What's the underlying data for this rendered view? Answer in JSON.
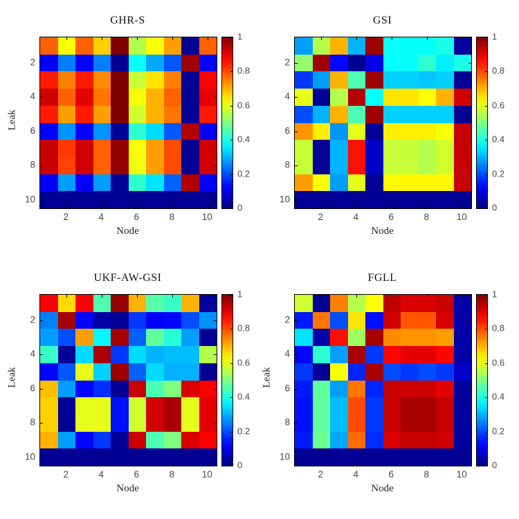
{
  "figure": {
    "background": "#ffffff",
    "colormap": "jet",
    "tick_label_color": "#474747",
    "title_color": "#111111"
  },
  "chart_data": [
    {
      "type": "heatmap",
      "title": "GHR-S",
      "xlabel": "Node",
      "ylabel": "Leak",
      "x_ticks": [
        2,
        4,
        6,
        8,
        10
      ],
      "y_ticks": [
        2,
        4,
        6,
        8,
        10
      ],
      "colorbar_ticks": [
        0,
        0.2,
        0.4,
        0.6,
        0.8,
        1
      ],
      "zlim": [
        0,
        1
      ],
      "x_range": [
        1,
        10
      ],
      "y_range": [
        1,
        10
      ],
      "values": [
        [
          0.78,
          0.62,
          0.78,
          0.67,
          1.0,
          0.55,
          0.62,
          0.72,
          0.02,
          0.78
        ],
        [
          0.12,
          0.25,
          0.12,
          0.25,
          0.02,
          0.38,
          0.29,
          0.21,
          0.97,
          0.12
        ],
        [
          0.85,
          0.75,
          0.85,
          0.74,
          1.0,
          0.57,
          0.65,
          0.75,
          0.02,
          0.87
        ],
        [
          0.92,
          0.78,
          0.9,
          0.76,
          1.0,
          0.62,
          0.7,
          0.78,
          0.02,
          0.9
        ],
        [
          0.85,
          0.72,
          0.85,
          0.72,
          1.0,
          0.58,
          0.7,
          0.76,
          0.02,
          0.85
        ],
        [
          0.12,
          0.27,
          0.12,
          0.27,
          0.02,
          0.42,
          0.34,
          0.21,
          0.95,
          0.12
        ],
        [
          0.93,
          0.82,
          0.92,
          0.78,
          0.98,
          0.62,
          0.72,
          0.8,
          0.02,
          0.92
        ],
        [
          0.93,
          0.81,
          0.92,
          0.78,
          0.98,
          0.61,
          0.72,
          0.8,
          0.02,
          0.92
        ],
        [
          0.12,
          0.28,
          0.12,
          0.28,
          0.02,
          0.42,
          0.35,
          0.22,
          0.95,
          0.12
        ],
        [
          0.02,
          0.02,
          0.02,
          0.02,
          0.02,
          0.02,
          0.02,
          0.02,
          0.02,
          0.02
        ]
      ]
    },
    {
      "type": "heatmap",
      "title": "GSI",
      "xlabel": "Node",
      "ylabel": "",
      "x_ticks": [
        2,
        4,
        6,
        8,
        10
      ],
      "y_ticks": [
        2,
        4,
        6,
        8,
        10
      ],
      "colorbar_ticks": [
        0,
        0.2,
        0.4,
        0.6,
        0.8,
        1
      ],
      "zlim": [
        0,
        1
      ],
      "x_range": [
        1,
        10
      ],
      "y_range": [
        1,
        10
      ],
      "values": [
        [
          0.28,
          0.55,
          0.7,
          0.3,
          0.97,
          0.38,
          0.38,
          0.38,
          0.4,
          0.03
        ],
        [
          0.52,
          0.97,
          0.13,
          0.02,
          0.1,
          0.38,
          0.38,
          0.42,
          0.36,
          0.4
        ],
        [
          0.18,
          0.28,
          0.7,
          0.45,
          0.97,
          0.33,
          0.33,
          0.32,
          0.33,
          0.02
        ],
        [
          0.6,
          0.02,
          0.55,
          0.95,
          0.38,
          0.65,
          0.65,
          0.62,
          0.7,
          0.92
        ],
        [
          0.2,
          0.3,
          0.7,
          0.45,
          0.97,
          0.33,
          0.33,
          0.33,
          0.33,
          0.02
        ],
        [
          0.73,
          0.64,
          0.27,
          0.6,
          0.02,
          0.64,
          0.64,
          0.64,
          0.62,
          0.93
        ],
        [
          0.57,
          0.02,
          0.3,
          0.86,
          0.07,
          0.57,
          0.57,
          0.55,
          0.58,
          0.93
        ],
        [
          0.57,
          0.02,
          0.3,
          0.86,
          0.07,
          0.57,
          0.57,
          0.55,
          0.58,
          0.93
        ],
        [
          0.72,
          0.62,
          0.28,
          0.6,
          0.02,
          0.63,
          0.63,
          0.63,
          0.63,
          0.93
        ],
        [
          0.02,
          0.02,
          0.02,
          0.02,
          0.02,
          0.02,
          0.02,
          0.02,
          0.02,
          0.02
        ]
      ]
    },
    {
      "type": "heatmap",
      "title": "UKF-AW-GSI",
      "xlabel": "Node",
      "ylabel": "Leak",
      "x_ticks": [
        2,
        4,
        6,
        8,
        10
      ],
      "y_ticks": [
        2,
        4,
        6,
        8,
        10
      ],
      "colorbar_ticks": [
        0,
        0.2,
        0.4,
        0.6,
        0.8,
        1
      ],
      "zlim": [
        0,
        1
      ],
      "x_range": [
        1,
        10
      ],
      "y_range": [
        1,
        10
      ],
      "values": [
        [
          0.88,
          0.66,
          0.88,
          0.45,
          0.98,
          0.7,
          0.46,
          0.43,
          0.7,
          0.03
        ],
        [
          0.25,
          0.96,
          0.13,
          0.04,
          0.02,
          0.18,
          0.12,
          0.13,
          0.2,
          0.27
        ],
        [
          0.28,
          0.2,
          0.72,
          0.37,
          0.96,
          0.22,
          0.47,
          0.41,
          0.28,
          0.02
        ],
        [
          0.43,
          0.02,
          0.34,
          0.96,
          0.18,
          0.34,
          0.3,
          0.31,
          0.31,
          0.55
        ],
        [
          0.13,
          0.21,
          0.6,
          0.33,
          0.97,
          0.22,
          0.34,
          0.3,
          0.3,
          0.02
        ],
        [
          0.69,
          0.28,
          0.13,
          0.17,
          0.02,
          0.93,
          0.45,
          0.5,
          0.91,
          0.88
        ],
        [
          0.67,
          0.02,
          0.6,
          0.6,
          0.14,
          0.58,
          0.92,
          0.96,
          0.6,
          0.9
        ],
        [
          0.67,
          0.02,
          0.6,
          0.6,
          0.14,
          0.58,
          0.92,
          0.96,
          0.6,
          0.9
        ],
        [
          0.7,
          0.28,
          0.13,
          0.18,
          0.02,
          0.92,
          0.45,
          0.5,
          0.91,
          0.88
        ],
        [
          0.02,
          0.02,
          0.02,
          0.02,
          0.02,
          0.02,
          0.02,
          0.02,
          0.02,
          0.02
        ]
      ]
    },
    {
      "type": "heatmap",
      "title": "FGLL",
      "xlabel": "Node",
      "ylabel": "Leak",
      "x_ticks": [
        2,
        4,
        6,
        8,
        10
      ],
      "y_ticks": [
        2,
        4,
        6,
        8,
        10
      ],
      "colorbar_ticks": [
        0,
        0.2,
        0.4,
        0.6,
        0.8,
        1
      ],
      "zlim": [
        0,
        1
      ],
      "x_range": [
        1,
        10
      ],
      "y_range": [
        1,
        10
      ],
      "values": [
        [
          0.58,
          0.02,
          0.75,
          0.55,
          0.62,
          0.94,
          0.91,
          0.91,
          0.93,
          0.04
        ],
        [
          0.15,
          0.76,
          0.2,
          0.65,
          0.14,
          0.92,
          0.79,
          0.79,
          0.91,
          0.04
        ],
        [
          0.35,
          0.04,
          0.86,
          0.53,
          0.96,
          0.74,
          0.73,
          0.73,
          0.72,
          0.04
        ],
        [
          0.13,
          0.42,
          0.28,
          0.96,
          0.18,
          0.87,
          0.9,
          0.9,
          0.87,
          0.04
        ],
        [
          0.18,
          0.02,
          0.62,
          0.16,
          0.96,
          0.2,
          0.18,
          0.2,
          0.18,
          0.07
        ],
        [
          0.15,
          0.47,
          0.28,
          0.76,
          0.16,
          0.93,
          0.92,
          0.92,
          0.9,
          0.03
        ],
        [
          0.14,
          0.47,
          0.31,
          0.8,
          0.18,
          0.93,
          0.96,
          0.96,
          0.93,
          0.03
        ],
        [
          0.14,
          0.47,
          0.31,
          0.8,
          0.18,
          0.93,
          0.96,
          0.96,
          0.93,
          0.03
        ],
        [
          0.15,
          0.48,
          0.29,
          0.77,
          0.17,
          0.91,
          0.93,
          0.93,
          0.92,
          0.03
        ],
        [
          0.02,
          0.02,
          0.02,
          0.02,
          0.02,
          0.02,
          0.02,
          0.02,
          0.02,
          0.02
        ]
      ]
    }
  ],
  "layout_labels": {
    "colorbar_top": "1",
    "colorbar_bottom": "0"
  }
}
